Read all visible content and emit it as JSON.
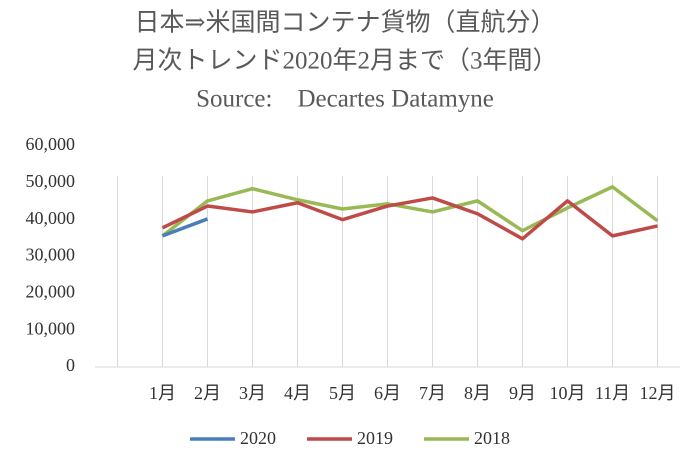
{
  "chart_data": {
    "type": "line",
    "title": "日本⇒米国間コンテナ貨物（直航分）",
    "subtitle": "月次トレンド2020年2月まで（3年間）",
    "source": "Source:　Decartes Datamyne",
    "categories": [
      null,
      "1月",
      "2月",
      "3月",
      "4月",
      "5月",
      "6月",
      "7月",
      "8月",
      "9月",
      "10月",
      "11月",
      "12月"
    ],
    "series": [
      {
        "name": "2020",
        "color": "#4a7ebb",
        "values": [
          null,
          35600,
          40200,
          null,
          null,
          null,
          null,
          null,
          null,
          null,
          null,
          null,
          null
        ]
      },
      {
        "name": "2019",
        "color": "#be4b48",
        "values": [
          null,
          37800,
          43700,
          42100,
          44600,
          40000,
          43700,
          45900,
          41600,
          34800,
          45100,
          35600,
          38300
        ]
      },
      {
        "name": "2018",
        "color": "#98b954",
        "values": [
          null,
          35600,
          45100,
          48400,
          45400,
          42900,
          44300,
          42100,
          45100,
          37000,
          43200,
          48900,
          39700
        ]
      }
    ],
    "ylim": [
      0,
      60000
    ],
    "yticks": [
      0,
      {
        "value": 10000,
        "label": "10,000"
      },
      {
        "value": 20000,
        "label": "20,000"
      },
      {
        "value": 30000,
        "label": "30,000"
      },
      {
        "value": 40000,
        "label": "40,000"
      },
      {
        "value": 50000,
        "label": "50,000"
      },
      {
        "value": 60000,
        "label": "60,000"
      }
    ],
    "grid": "vertical",
    "legend": "bottom"
  }
}
